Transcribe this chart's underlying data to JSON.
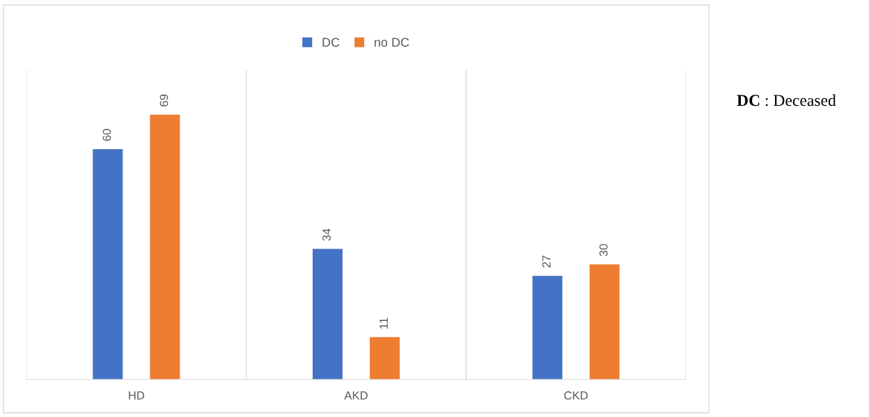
{
  "chart_data": {
    "type": "bar",
    "categories": [
      "HD",
      "AKD",
      "CKD"
    ],
    "series": [
      {
        "name": "DC",
        "color": "#4472c4",
        "values": [
          60,
          34,
          27
        ]
      },
      {
        "name": "no DC",
        "color": "#ed7d31",
        "values": [
          69,
          11,
          30
        ]
      }
    ],
    "data_labels": true,
    "legend": "top",
    "grid": "x",
    "tick_labels": "x",
    "annotations": [
      "DC : Deceased"
    ]
  }
}
